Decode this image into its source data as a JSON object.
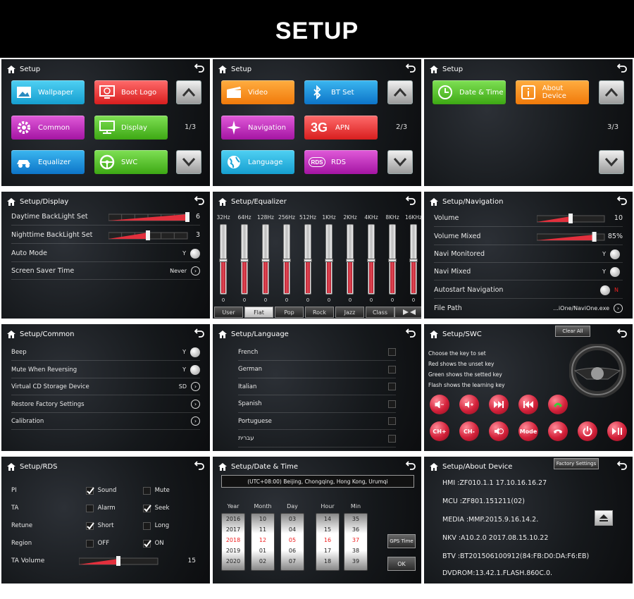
{
  "header": {
    "title": "SETUP"
  },
  "p1": {
    "title": "Setup",
    "tiles": [
      "Wallpaper",
      "Boot Logo",
      "Common",
      "Display",
      "Equalizer",
      "SWC"
    ],
    "page": "1/3"
  },
  "p2": {
    "title": "Setup",
    "tiles": [
      "Video",
      "BT Set",
      "Navigation",
      "APN",
      "Language",
      "RDS"
    ],
    "page": "2/3",
    "apn_prefix": "3G",
    "rds_icon": "RDS"
  },
  "p3": {
    "title": "Setup",
    "tiles": [
      "Date & Time",
      "About Device"
    ],
    "page": "3/3"
  },
  "display": {
    "title": "Setup/Display",
    "rows": [
      {
        "label": "Daytime BackLight Set",
        "value": "6",
        "level": 6,
        "max": 6
      },
      {
        "label": "Nighttime BackLight Set",
        "value": "3",
        "level": 3,
        "max": 6
      },
      {
        "label": "Auto Mode",
        "value": "Y"
      },
      {
        "label": "Screen Saver Time",
        "value": "Never"
      }
    ]
  },
  "equalizer": {
    "title": "Setup/Equalizer",
    "bands": [
      "32Hz",
      "64Hz",
      "128Hz",
      "256Hz",
      "512Hz",
      "1KHz",
      "2KHz",
      "4KHz",
      "8KHz",
      "16KHz"
    ],
    "values": [
      "0",
      "0",
      "0",
      "0",
      "0",
      "0",
      "0",
      "0",
      "0",
      "0"
    ],
    "presets": [
      "User",
      "Flat",
      "Pop",
      "Rock",
      "Jazz",
      "Class"
    ],
    "selected": "Flat"
  },
  "navigation": {
    "title": "Setup/Navigation",
    "rows": [
      {
        "label": "Volume",
        "value": "10",
        "level": 0.5
      },
      {
        "label": "Volume Mixed",
        "value": "85%",
        "level": 0.85
      },
      {
        "label": "Navi Monitored",
        "value": "Y"
      },
      {
        "label": "Navi Mixed",
        "value": "Y"
      },
      {
        "label": "Autostart Navigation",
        "value": "N"
      },
      {
        "label": "File Path",
        "value": "...iOne/NaviOne.exe"
      }
    ]
  },
  "common": {
    "title": "Setup/Common",
    "rows": [
      {
        "label": "Beep",
        "value": "Y"
      },
      {
        "label": "Mute When Reversing",
        "value": "Y"
      },
      {
        "label": "Virtual CD Storage Device",
        "value": "SD"
      },
      {
        "label": "Restore Factory Settings",
        "value": ""
      },
      {
        "label": "Calibration",
        "value": ""
      }
    ]
  },
  "language": {
    "title": "Setup/Language",
    "items": [
      "French",
      "German",
      "Italian",
      "Spanish",
      "Portuguese",
      "עברית"
    ]
  },
  "swc": {
    "title": "Setup/SWC",
    "clear": "Clear All",
    "help": [
      "Choose the key to set",
      "Red shows the unset key",
      "Green shows the setted key",
      "Flash shows the learning key"
    ],
    "buttons2": [
      "CH+",
      "CH-",
      "Mode"
    ]
  },
  "rds": {
    "title": "Setup/RDS",
    "rows": [
      {
        "label": "PI",
        "a": "Sound",
        "a_on": true,
        "b": "Mute",
        "b_on": false
      },
      {
        "label": "TA",
        "a": "Alarm",
        "a_on": false,
        "b": "Seek",
        "b_on": true
      },
      {
        "label": "Retune",
        "a": "Short",
        "a_on": true,
        "b": "Long",
        "b_on": false
      },
      {
        "label": "Region",
        "a": "OFF",
        "a_on": false,
        "b": "ON",
        "b_on": true
      }
    ],
    "ta_volume_label": "TA Volume",
    "ta_volume": "15",
    "ta_level": 0.5
  },
  "datetime": {
    "title": "Setup/Date & Time",
    "tz": "(UTC+08:00) Beijing, Chongqing, Hong Kong, Urumqi",
    "headers": [
      "Year",
      "Month",
      "Day",
      "Hour",
      "Min"
    ],
    "cols": [
      [
        "2016",
        "2017",
        "2018",
        "2019",
        "2020"
      ],
      [
        "10",
        "11",
        "12",
        "01",
        "02"
      ],
      [
        "03",
        "04",
        "05",
        "06",
        "07"
      ],
      [
        "14",
        "15",
        "16",
        "17",
        "18"
      ],
      [
        "35",
        "36",
        "37",
        "38",
        "39"
      ]
    ],
    "gps": "GPS Time",
    "ok": "OK"
  },
  "about": {
    "title": "Setup/About Device",
    "factory": "Factory Settings",
    "lines": [
      "HMI  :ZF010.1.1   17.10.16.16.27",
      "MCU :ZF801.151211(02)",
      "MEDIA :MMP.2015.9.16.14.2.",
      "NKV :A10.2.0 2017.08.15.10.22",
      "BTV  :BT201506100912(84:FB:D0:DA:F6:EB)",
      "DVDROM:13.42.1.FLASH.860C.0."
    ]
  }
}
